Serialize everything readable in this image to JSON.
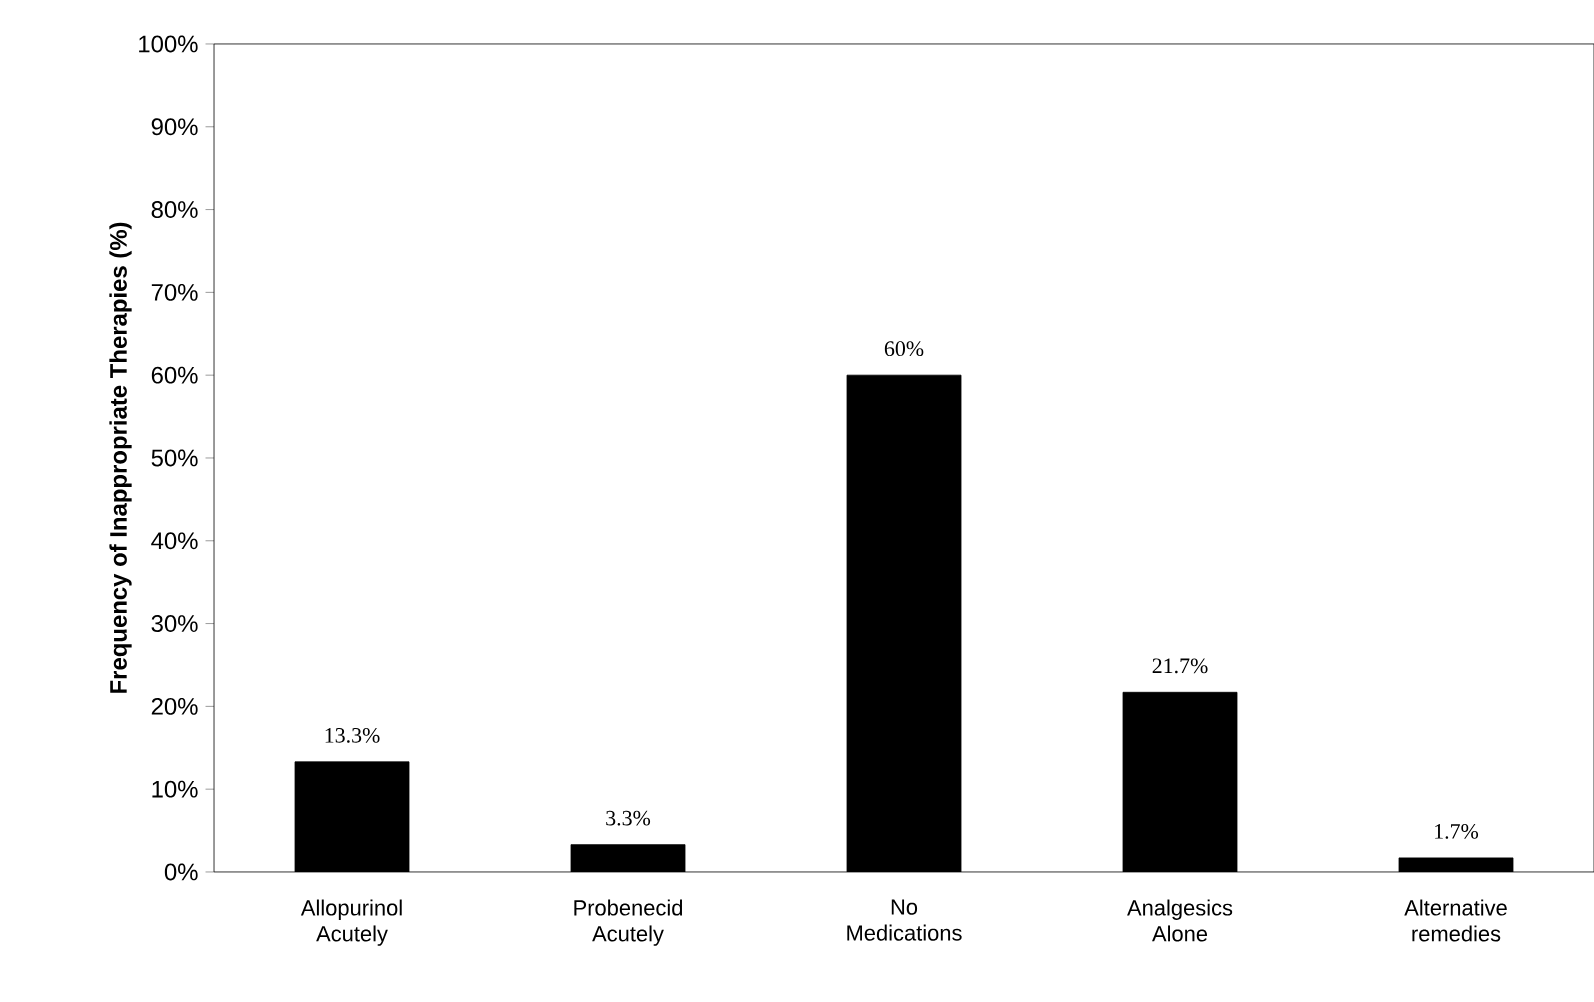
{
  "chart_data": {
    "type": "bar",
    "ylabel": "Frequency of Inappropriate Therapies (%)",
    "categories": [
      "Allopurinol Acutely",
      "Probenecid Acutely",
      "No Medications",
      "Analgesics Alone",
      "Alternative remedies"
    ],
    "values": [
      13.3,
      3.3,
      60,
      21.7,
      1.7
    ],
    "value_labels": [
      "13.3%",
      "3.3%",
      "60%",
      "21.7%",
      "1.7%"
    ],
    "color": "#000000",
    "ylim": [
      0,
      100
    ],
    "yticks": [
      {
        "value": 0,
        "label": "0%"
      },
      {
        "value": 10,
        "label": "10%"
      },
      {
        "value": 20,
        "label": "20%"
      },
      {
        "value": 30,
        "label": "30%"
      },
      {
        "value": 40,
        "label": "40%"
      },
      {
        "value": 50,
        "label": "50%"
      },
      {
        "value": 60,
        "label": "60%"
      },
      {
        "value": 70,
        "label": "70%"
      },
      {
        "value": 80,
        "label": "80%"
      },
      {
        "value": 90,
        "label": "90%"
      },
      {
        "value": 100,
        "label": "100%"
      }
    ],
    "grid": false
  }
}
